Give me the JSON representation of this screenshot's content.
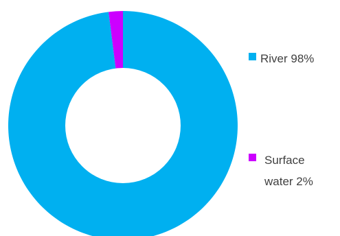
{
  "chart_data": {
    "type": "donut",
    "title": "",
    "series": [
      {
        "values": [
          98,
          2
        ]
      }
    ],
    "categories": [
      "River",
      "Surface water"
    ],
    "slices": [
      {
        "label": "River",
        "value": 98,
        "color": "#00B0F0"
      },
      {
        "label": "Surface water",
        "value": 2,
        "color": "#CC00FF"
      }
    ],
    "legend": {
      "placement": "right",
      "entries": [
        {
          "lines": [
            "River 98%"
          ],
          "color": "#00B0F0"
        },
        {
          "lines": [
            "Surface",
            "water 2%"
          ],
          "color": "#CC00FF"
        }
      ]
    }
  }
}
